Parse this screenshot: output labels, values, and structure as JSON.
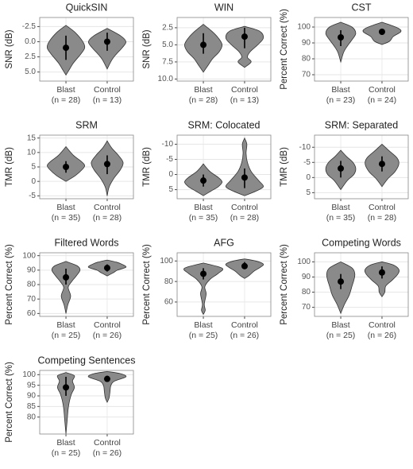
{
  "chart_data": [
    {
      "type": "violin",
      "title": "QuickSIN",
      "y_label": "SNR (dB)",
      "categories": [
        "Blast",
        "Control"
      ],
      "n_labels": [
        "(n = 28)",
        "(n = 13)"
      ],
      "color": "#8a8a8a",
      "grid": true,
      "ylim": [
        6.5,
        -4
      ],
      "yticks": [
        -2.5,
        {
          "value": 0,
          "label": "0.0"
        },
        2.5,
        {
          "value": 5,
          "label": "5.0"
        }
      ],
      "groups": [
        {
          "mean": 1,
          "ci": [
            -1,
            3
          ],
          "violin_y": [
            -2.7,
            -1.5,
            0,
            1,
            2,
            3.5,
            4.5,
            5.5
          ],
          "violin_width": [
            0,
            0.5,
            0.9,
            1,
            0.8,
            0.4,
            0.2,
            0
          ]
        },
        {
          "mean": 0,
          "ci": [
            -1.5,
            1.5
          ],
          "violin_y": [
            -2.2,
            -1,
            0,
            1,
            2,
            3,
            4.5
          ],
          "violin_width": [
            0,
            0.7,
            1,
            0.8,
            0.5,
            0.25,
            0
          ]
        }
      ]
    },
    {
      "type": "violin",
      "title": "WIN",
      "y_label": "SNR (dB)",
      "categories": [
        "Blast",
        "Control"
      ],
      "n_labels": [
        "(n = 28)",
        "(n = 13)"
      ],
      "color": "#8a8a8a",
      "grid": true,
      "ylim": [
        10.3,
        1
      ],
      "yticks": [
        2.5,
        {
          "value": 5,
          "label": "5.0"
        },
        7.5,
        {
          "value": 10,
          "label": "10.0"
        }
      ],
      "groups": [
        {
          "mean": 5,
          "ci": [
            3.3,
            6.3
          ],
          "violin_y": [
            2,
            3,
            4,
            5,
            6,
            7,
            8,
            9
          ],
          "violin_width": [
            0,
            0.45,
            0.8,
            1,
            0.85,
            0.5,
            0.25,
            0
          ]
        },
        {
          "mean": 3.8,
          "ci": [
            2.5,
            5.5
          ],
          "violin_y": [
            2.3,
            3,
            4,
            5,
            6,
            6.8,
            7.5,
            8.3
          ],
          "violin_width": [
            0,
            0.8,
            1,
            0.7,
            0.3,
            0.15,
            0.35,
            0
          ]
        }
      ]
    },
    {
      "type": "violin",
      "title": "CST",
      "y_label": "Percent Correct (%)",
      "categories": [
        "Blast",
        "Control"
      ],
      "n_labels": [
        "(n = 23)",
        "(n = 24)"
      ],
      "color": "#8a8a8a",
      "grid": true,
      "ylim": [
        66,
        106
      ],
      "yticks": [
        70,
        80,
        90,
        100
      ],
      "groups": [
        {
          "mean": 93.5,
          "ci": [
            88,
            98
          ],
          "violin_y": [
            78,
            84,
            88,
            92,
            96,
            100,
            103
          ],
          "violin_width": [
            0,
            0.15,
            0.35,
            0.6,
            0.8,
            0.6,
            0
          ]
        },
        {
          "mean": 97,
          "ci": [
            95,
            99
          ],
          "violin_y": [
            89,
            91,
            94,
            97,
            99,
            101,
            103
          ],
          "violin_width": [
            0,
            0.4,
            0.6,
            1,
            0.9,
            0.5,
            0
          ]
        }
      ]
    },
    {
      "type": "violin",
      "title": "SRM",
      "y_label": "TMR (dB)",
      "categories": [
        "Blast",
        "Control"
      ],
      "n_labels": [
        "(n = 35)",
        "(n = 28)"
      ],
      "color": "#8a8a8a",
      "grid": true,
      "ylim": [
        -6,
        16
      ],
      "yticks": [
        -5,
        0,
        5,
        10,
        15
      ],
      "groups": [
        {
          "mean": 5,
          "ci": [
            3,
            7
          ],
          "violin_y": [
            0,
            2,
            4,
            5.5,
            7,
            9,
            12
          ],
          "violin_width": [
            0,
            0.5,
            0.85,
            1,
            0.8,
            0.4,
            0
          ]
        },
        {
          "mean": 6,
          "ci": [
            2.5,
            9
          ],
          "violin_y": [
            -5,
            -2,
            1,
            4,
            6.5,
            9,
            11.5,
            14
          ],
          "violin_width": [
            0,
            0.1,
            0.35,
            0.7,
            0.85,
            0.6,
            0.25,
            0
          ]
        }
      ]
    },
    {
      "type": "violin",
      "title": "SRM: Colocated",
      "y_label": "TMR (dB)",
      "categories": [
        "Blast",
        "Control"
      ],
      "n_labels": [
        "(n = 35)",
        "(n = 28)"
      ],
      "color": "#8a8a8a",
      "grid": true,
      "ylim": [
        8,
        -13
      ],
      "yticks": [
        -10,
        -5,
        0,
        5
      ],
      "groups": [
        {
          "mean": 2,
          "ci": [
            0,
            4
          ],
          "violin_y": [
            -3.5,
            -1,
            1,
            2.5,
            4,
            5.5,
            7
          ],
          "violin_width": [
            0,
            0.35,
            0.8,
            1,
            0.8,
            0.4,
            0
          ]
        },
        {
          "mean": 1,
          "ci": [
            -2,
            4.5
          ],
          "violin_y": [
            -12,
            -10,
            -7,
            -4,
            -1,
            2,
            4,
            5.5,
            7
          ],
          "violin_width": [
            0,
            0.12,
            0.08,
            0.15,
            0.35,
            0.75,
            1,
            0.6,
            0
          ]
        }
      ]
    },
    {
      "type": "violin",
      "title": "SRM: Separated",
      "y_label": "TMR (dB)",
      "categories": [
        "Blast",
        "Control"
      ],
      "n_labels": [
        "(n = 35)",
        "(n = 28)"
      ],
      "color": "#8a8a8a",
      "grid": true,
      "ylim": [
        7,
        -14
      ],
      "yticks": [
        -10,
        -5,
        0,
        5
      ],
      "groups": [
        {
          "mean": -3,
          "ci": [
            -5.5,
            0
          ],
          "violin_y": [
            -9,
            -7,
            -5,
            -3,
            -1,
            1,
            4
          ],
          "violin_width": [
            0,
            0.3,
            0.65,
            0.8,
            0.7,
            0.35,
            0
          ]
        },
        {
          "mean": -4.5,
          "ci": [
            -7,
            -2
          ],
          "violin_y": [
            -11,
            -9,
            -6.5,
            -4.5,
            -2,
            0.5,
            3
          ],
          "violin_width": [
            0,
            0.35,
            0.8,
            0.9,
            0.7,
            0.3,
            0
          ]
        }
      ]
    },
    {
      "type": "violin",
      "title": "Filtered Words",
      "y_label": "Percent Correct (%)",
      "categories": [
        "Blast",
        "Control"
      ],
      "n_labels": [
        "(n = 25)",
        "(n = 26)"
      ],
      "color": "#8a8a8a",
      "grid": true,
      "ylim": [
        58,
        102
      ],
      "yticks": [
        60,
        70,
        80,
        90,
        100
      ],
      "groups": [
        {
          "mean": 85,
          "ci": [
            80,
            91
          ],
          "violin_y": [
            60,
            66,
            72,
            78,
            82,
            86,
            90,
            93,
            96
          ],
          "violin_width": [
            0,
            0.1,
            0.25,
            0.12,
            0.3,
            0.55,
            0.75,
            0.6,
            0
          ]
        },
        {
          "mean": 91.5,
          "ci": [
            89,
            94
          ],
          "violin_y": [
            86,
            88,
            90,
            92,
            94,
            95.5,
            97
          ],
          "violin_width": [
            0,
            0.3,
            0.55,
            1,
            0.8,
            0.5,
            0
          ]
        }
      ]
    },
    {
      "type": "violin",
      "title": "AFG",
      "y_label": "Percent Correct (%)",
      "categories": [
        "Blast",
        "Control"
      ],
      "n_labels": [
        "(n = 25)",
        "(n = 26)"
      ],
      "color": "#8a8a8a",
      "grid": true,
      "ylim": [
        46,
        108
      ],
      "yticks": [
        60,
        80,
        100
      ],
      "groups": [
        {
          "mean": 87.5,
          "ci": [
            82,
            93
          ],
          "violin_y": [
            48,
            52,
            58,
            68,
            75,
            82,
            88,
            93,
            98
          ],
          "violin_width": [
            0,
            0.1,
            0.05,
            0.15,
            0.08,
            0.35,
            0.8,
            1,
            0
          ]
        },
        {
          "mean": 95,
          "ci": [
            92,
            99
          ],
          "violin_y": [
            83,
            86,
            90,
            94,
            97,
            100,
            102
          ],
          "violin_width": [
            0,
            0.25,
            0.5,
            0.85,
            1,
            0.6,
            0
          ]
        }
      ]
    },
    {
      "type": "violin",
      "title": "Competing Words",
      "y_label": "Percent Correct (%)",
      "categories": [
        "Blast",
        "Control"
      ],
      "n_labels": [
        "(n = 25)",
        "(n = 26)"
      ],
      "color": "#8a8a8a",
      "grid": true,
      "ylim": [
        64,
        106
      ],
      "yticks": [
        70,
        80,
        90,
        100
      ],
      "groups": [
        {
          "mean": 87,
          "ci": [
            82,
            92
          ],
          "violin_y": [
            66,
            72,
            78,
            84,
            88,
            92,
            96,
            100
          ],
          "violin_width": [
            0,
            0.2,
            0.45,
            0.6,
            0.7,
            0.75,
            0.6,
            0
          ]
        },
        {
          "mean": 93,
          "ci": [
            89,
            97
          ],
          "violin_y": [
            77,
            80,
            84,
            88,
            92,
            95,
            98,
            100
          ],
          "violin_width": [
            0,
            0.15,
            0.2,
            0.55,
            0.85,
            0.9,
            0.6,
            0
          ]
        }
      ]
    },
    {
      "type": "violin",
      "title": "Competing Sentences",
      "y_label": "Percent Correct (%)",
      "categories": [
        "Blast",
        "Control"
      ],
      "n_labels": [
        "(n = 25)",
        "(n = 26)"
      ],
      "color": "#8a8a8a",
      "grid": true,
      "ylim": [
        72,
        102
      ],
      "yticks": [
        80,
        85,
        90,
        95,
        100
      ],
      "groups": [
        {
          "mean": 94,
          "ci": [
            90,
            99
          ],
          "violin_y": [
            72,
            78,
            84,
            88,
            91,
            94,
            97,
            99.5,
            101
          ],
          "violin_width": [
            0,
            0.06,
            0.12,
            0.2,
            0.3,
            0.45,
            0.35,
            0.45,
            0
          ]
        },
        {
          "mean": 98,
          "ci": [
            97,
            99.5
          ],
          "violin_y": [
            87,
            89,
            92,
            95,
            97,
            99,
            100.5,
            101.5
          ],
          "violin_width": [
            0,
            0.1,
            0.15,
            0.2,
            0.4,
            1,
            0.7,
            0
          ]
        }
      ]
    }
  ]
}
